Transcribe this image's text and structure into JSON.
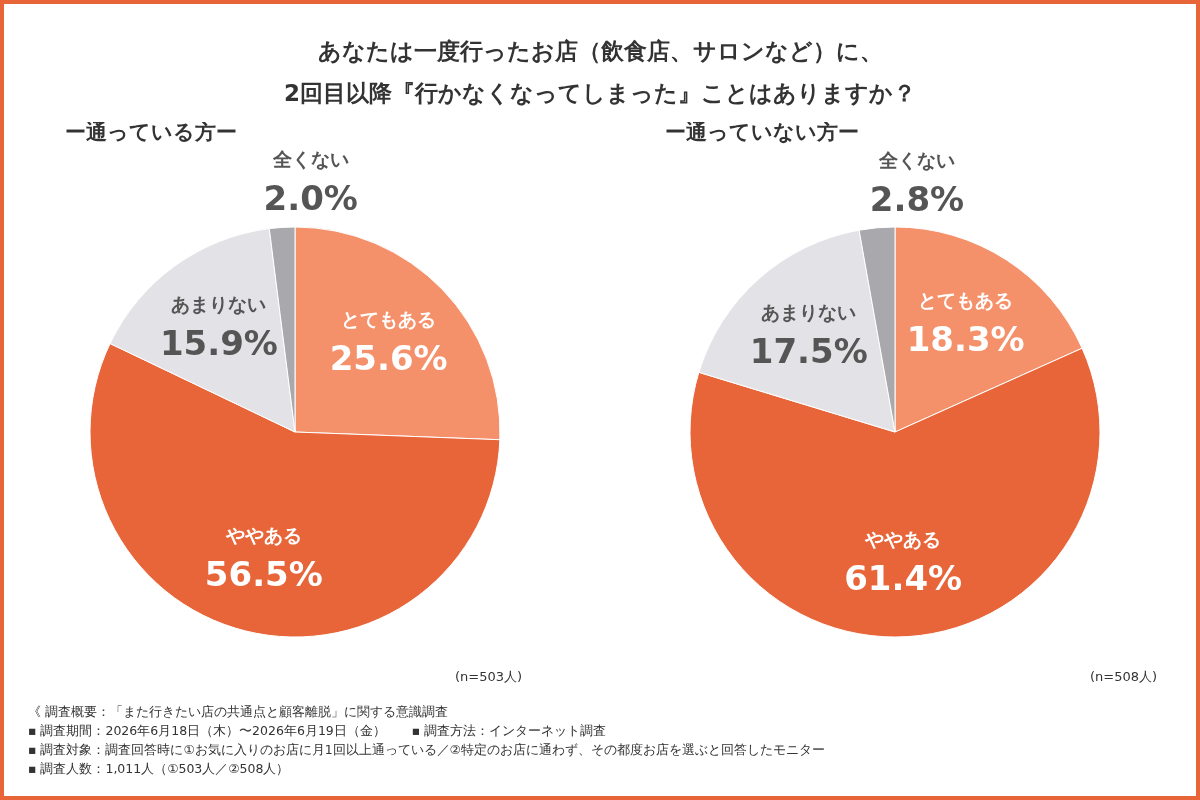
{
  "chart_data": [
    {
      "type": "pie",
      "title": "あなたは一度行ったお店（飲食店、サロンなど）に、\n2回目以降『行かなくなってしまった』ことはありますか？",
      "subtitle": "ー通っている方ー",
      "categories": [
        "とてもある",
        "ややある",
        "あまりない",
        "全くない"
      ],
      "values": [
        25.6,
        56.5,
        15.9,
        2.0
      ],
      "value_labels": [
        "25.6%",
        "56.5%",
        "15.9%",
        "2.0%"
      ],
      "colors": [
        "#f4906a",
        "#e8653a",
        "#e3e2e6",
        "#a9a8ad"
      ],
      "legend": false,
      "annotations": [
        "(n=503人)",
        "《 調査概要：「また行きたい店の共通点と顧客離脱」に関する意識調査",
        "▪ 調査期間：2026年6月18日（木）〜2026年6月19日（金）　　▪ 調査方法：インターネット調査",
        "▪ 調査対象：調査回答時に①お気に入りのお店に月1回以上通っている／②特定のお店に通わず、その都度お店を選ぶと回答したモニター",
        "▪ 調査人数：1,011人（①503人／②508人）"
      ]
    },
    {
      "type": "pie",
      "subtitle": "ー通っていない方ー",
      "categories": [
        "とてもある",
        "ややある",
        "あまりない",
        "全くない"
      ],
      "values": [
        18.3,
        61.4,
        17.5,
        2.8
      ],
      "value_labels": [
        "18.3%",
        "61.4%",
        "17.5%",
        "2.8%"
      ],
      "colors": [
        "#f4906a",
        "#e8653a",
        "#e3e2e6",
        "#a9a8ad"
      ],
      "legend": false,
      "annotations": [
        "(n=508人)"
      ]
    }
  ]
}
